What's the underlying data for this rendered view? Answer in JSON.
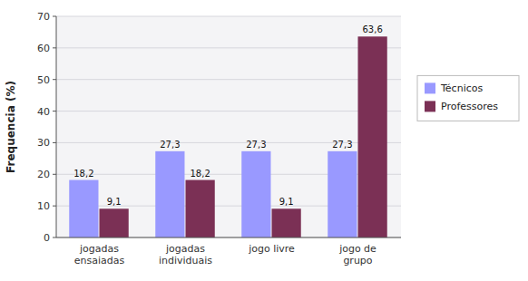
{
  "chart_data": {
    "type": "bar",
    "categories": [
      "jogadas\nensaiadas",
      "jogadas\nindividuais",
      "jogo livre",
      "jogo de\ngrupo"
    ],
    "series": [
      {
        "name": "Técnicos",
        "color": "#9999FF",
        "values": [
          18.2,
          27.3,
          27.3,
          27.3
        ],
        "value_labels": [
          "18,2",
          "27,3",
          "27,3",
          "27,3"
        ]
      },
      {
        "name": "Professores",
        "color": "#7B3055",
        "values": [
          9.1,
          18.2,
          9.1,
          63.6
        ],
        "value_labels": [
          "9,1",
          "18,2",
          "9,1",
          "63,6"
        ]
      }
    ],
    "y_label": "Frequencia (%)",
    "ylim": [
      0,
      70
    ],
    "yticks": [
      0,
      10,
      20,
      30,
      40,
      50,
      60,
      70
    ],
    "grid": true,
    "legend": "right",
    "data_labels": true
  }
}
